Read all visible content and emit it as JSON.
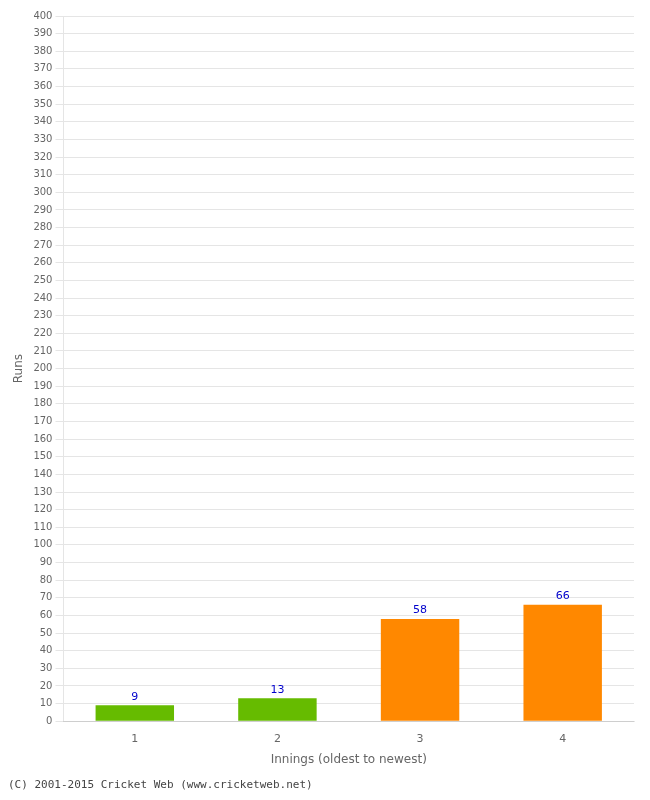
{
  "chart_data": {
    "type": "bar",
    "categories": [
      "1",
      "2",
      "3",
      "4"
    ],
    "values": [
      9,
      13,
      58,
      66
    ],
    "colors": [
      "#66bb00",
      "#66bb00",
      "#ff8800",
      "#ff8800"
    ],
    "xlabel": "Innings (oldest to newest)",
    "ylabel": "Runs",
    "ylim": [
      0,
      400
    ],
    "yticks": [
      0,
      10,
      20,
      30,
      40,
      50,
      60,
      70,
      80,
      90,
      100,
      110,
      120,
      130,
      140,
      150,
      160,
      170,
      180,
      190,
      200,
      210,
      220,
      230,
      240,
      250,
      260,
      270,
      280,
      290,
      300,
      310,
      320,
      330,
      340,
      350,
      360,
      370,
      380,
      390,
      400
    ],
    "grid": true,
    "data_labels": true,
    "annotations": [
      "(C) 2001-2015 Cricket Web (www.cricketweb.net)"
    ]
  }
}
